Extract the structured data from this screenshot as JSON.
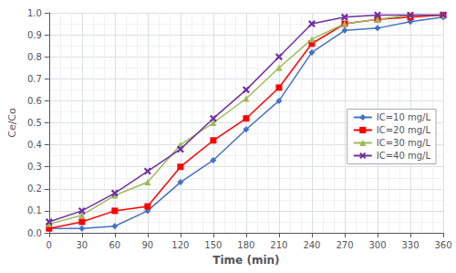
{
  "chart_data": {
    "type": "line",
    "title": "",
    "xlabel": "Time (min)",
    "ylabel": "Ce/Co",
    "x": [
      0,
      30,
      60,
      90,
      120,
      150,
      180,
      210,
      240,
      270,
      300,
      330,
      360
    ],
    "series": [
      {
        "name": "IC=10 mg/L",
        "color": "#4472C4",
        "marker": "diamond",
        "values": [
          0.02,
          0.02,
          0.03,
          0.1,
          0.23,
          0.33,
          0.47,
          0.6,
          0.82,
          0.92,
          0.93,
          0.96,
          0.98
        ]
      },
      {
        "name": "IC=20 mg/L",
        "color": "#FF0000",
        "marker": "square",
        "values": [
          0.02,
          0.05,
          0.1,
          0.12,
          0.3,
          0.42,
          0.52,
          0.66,
          0.86,
          0.95,
          0.97,
          0.98,
          0.99
        ]
      },
      {
        "name": "IC=30 mg/L",
        "color": "#9BBB59",
        "marker": "triangle",
        "values": [
          0.04,
          0.08,
          0.17,
          0.23,
          0.4,
          0.5,
          0.61,
          0.75,
          0.88,
          0.95,
          0.97,
          0.99,
          0.99
        ]
      },
      {
        "name": "IC=40 mg/L",
        "color": "#7030A0",
        "marker": "x",
        "values": [
          0.05,
          0.1,
          0.18,
          0.28,
          0.38,
          0.52,
          0.65,
          0.8,
          0.95,
          0.98,
          0.99,
          0.99,
          0.99
        ]
      }
    ],
    "xlim": [
      0,
      360
    ],
    "xticks": [
      0,
      30,
      60,
      90,
      120,
      150,
      180,
      210,
      240,
      270,
      300,
      330,
      360
    ],
    "ylim": [
      0,
      1.0
    ],
    "yticks": [
      {
        "value": 0,
        "label": "0.0"
      },
      0.1,
      0.2,
      0.3,
      0.4,
      0.5,
      0.6,
      0.7,
      0.8,
      0.9,
      {
        "value": 1.0,
        "label": "1.0"
      }
    ],
    "grid": true,
    "legend": "center right"
  }
}
